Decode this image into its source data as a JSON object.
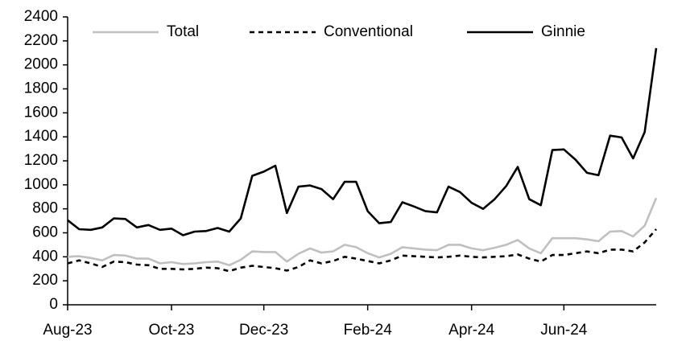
{
  "chart_data": {
    "type": "line",
    "categories": [
      "Aug-23",
      null,
      null,
      null,
      null,
      null,
      null,
      null,
      null,
      "Oct-23",
      null,
      null,
      null,
      null,
      null,
      null,
      null,
      "Dec-23",
      null,
      null,
      null,
      null,
      null,
      null,
      null,
      null,
      "Feb-24",
      null,
      null,
      null,
      null,
      null,
      null,
      null,
      null,
      "Apr-24",
      null,
      null,
      null,
      null,
      null,
      null,
      null,
      "Jun-24",
      null,
      null,
      null,
      null,
      null,
      null,
      null,
      null
    ],
    "series": [
      {
        "name": "Total",
        "color": "#c0c0c0",
        "dash": "solid",
        "values": [
          400,
          405,
          390,
          370,
          415,
          410,
          385,
          385,
          345,
          355,
          340,
          345,
          355,
          360,
          330,
          375,
          445,
          440,
          440,
          360,
          425,
          470,
          435,
          445,
          500,
          480,
          430,
          395,
          425,
          480,
          470,
          460,
          455,
          500,
          500,
          470,
          455,
          475,
          500,
          540,
          470,
          430,
          555,
          555,
          555,
          545,
          530,
          610,
          615,
          570,
          660,
          890
        ]
      },
      {
        "name": "Conventional",
        "color": "#000000",
        "dash": "dashed",
        "values": [
          345,
          370,
          345,
          315,
          360,
          355,
          335,
          330,
          300,
          300,
          295,
          300,
          310,
          305,
          280,
          310,
          325,
          315,
          305,
          285,
          315,
          370,
          345,
          365,
          400,
          385,
          365,
          345,
          370,
          410,
          405,
          400,
          395,
          400,
          410,
          400,
          395,
          400,
          405,
          420,
          385,
          360,
          415,
          415,
          430,
          445,
          430,
          460,
          460,
          445,
          520,
          630
        ]
      },
      {
        "name": "Ginnie",
        "color": "#000000",
        "dash": "solid",
        "values": [
          705,
          630,
          625,
          645,
          720,
          715,
          645,
          665,
          625,
          635,
          580,
          610,
          615,
          640,
          610,
          720,
          1075,
          1110,
          1160,
          765,
          985,
          995,
          965,
          880,
          1025,
          1025,
          780,
          680,
          690,
          855,
          820,
          780,
          770,
          985,
          940,
          850,
          800,
          880,
          990,
          1150,
          880,
          830,
          1290,
          1295,
          1210,
          1100,
          1080,
          1410,
          1395,
          1220,
          1440,
          2140
        ]
      }
    ],
    "ylim": [
      0,
      2400
    ],
    "yticks": [
      0,
      200,
      400,
      600,
      800,
      1000,
      1200,
      1400,
      1600,
      1800,
      2000,
      2200,
      2400
    ],
    "legend": "top",
    "grid": false
  }
}
